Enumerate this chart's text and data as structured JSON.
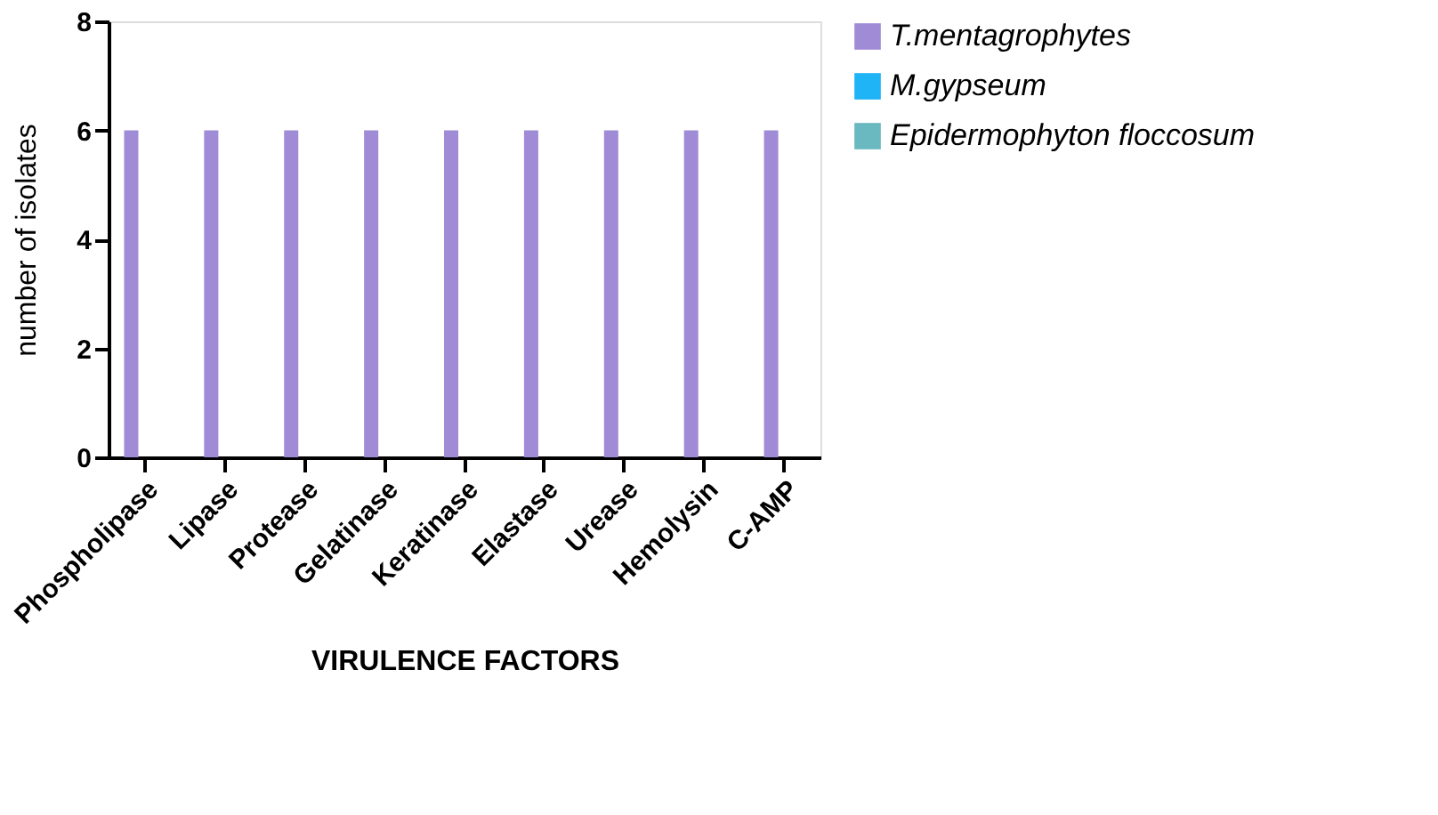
{
  "chart_data": {
    "type": "bar",
    "xlabel": "VIRULENCE FACTORS",
    "ylabel": "number of isolates",
    "categories": [
      "Phospholipase",
      "Lipase",
      "Protease",
      "Gelatinase",
      "Keratinase",
      "Elastase",
      "Urease",
      "Hemolysin",
      "C-AMP"
    ],
    "series": [
      {
        "name": "T.mentagrophytes",
        "color": "#a08bd6",
        "values": [
          6,
          6,
          6,
          6,
          6,
          6,
          6,
          6,
          6
        ]
      },
      {
        "name": "M.gypseum",
        "color": "#1fb4f5",
        "values": [
          0,
          0,
          0,
          0,
          0,
          0,
          0,
          0,
          0
        ]
      },
      {
        "name": "Epidermophyton floccosum",
        "color": "#6ab8c0",
        "values": [
          0,
          0,
          0,
          0,
          0,
          0,
          0,
          0,
          0
        ]
      }
    ],
    "ylim": [
      0,
      8
    ],
    "yticks": [
      0,
      2,
      4,
      6,
      8
    ],
    "grid": false,
    "legend": "top right"
  }
}
